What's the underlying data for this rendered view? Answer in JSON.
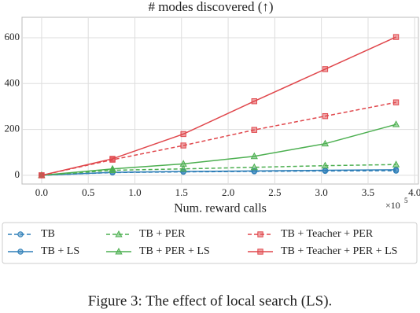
{
  "chart_data": {
    "type": "line",
    "title": "# modes discovered (↑)",
    "x_label": "Num. reward calls",
    "x_multiplier": "×10",
    "x_multiplier_exp": "5",
    "caption": "Figure 3: The effect of local search (LS).",
    "x": [
      0,
      0.76,
      1.52,
      2.28,
      3.04,
      3.8
    ],
    "xlim": [
      -0.21,
      4.04
    ],
    "xticks": [
      {
        "value": 0,
        "label": "0.0"
      },
      {
        "value": 0.5,
        "label": "0.5"
      },
      {
        "value": 1,
        "label": "1.0"
      },
      {
        "value": 1.5,
        "label": "1.5"
      },
      {
        "value": 2,
        "label": "2.0"
      },
      {
        "value": 2.5,
        "label": "2.5"
      },
      {
        "value": 3,
        "label": "3.0"
      },
      {
        "value": 3.5,
        "label": "3.5"
      },
      {
        "value": 4,
        "label": "4.0"
      }
    ],
    "ylim": [
      -38,
      689
    ],
    "yticks": [
      0,
      200,
      400,
      600
    ],
    "grid": true,
    "series": [
      {
        "name": "TB",
        "color": "#2f7fb8",
        "dash": true,
        "marker": "circle",
        "values": [
          0,
          12,
          15,
          17,
          19,
          20
        ]
      },
      {
        "name": "TB + LS",
        "color": "#2f7fb8",
        "dash": false,
        "marker": "circle",
        "values": [
          0,
          13,
          17,
          19,
          22,
          24
        ]
      },
      {
        "name": "TB + PER",
        "color": "#4caf50",
        "dash": true,
        "marker": "triangle",
        "values": [
          0,
          22,
          28,
          35,
          42,
          47
        ]
      },
      {
        "name": "TB + PER + LS",
        "color": "#4caf50",
        "dash": false,
        "marker": "triangle",
        "values": [
          0,
          28,
          50,
          83,
          138,
          222
        ]
      },
      {
        "name": "TB + Teacher + PER",
        "color": "#e0474c",
        "dash": true,
        "marker": "square",
        "values": [
          0,
          68,
          130,
          198,
          258,
          318
        ]
      },
      {
        "name": "TB + Teacher + PER + LS",
        "color": "#e0474c",
        "dash": false,
        "marker": "square",
        "values": [
          0,
          72,
          180,
          323,
          463,
          603
        ]
      }
    ]
  }
}
